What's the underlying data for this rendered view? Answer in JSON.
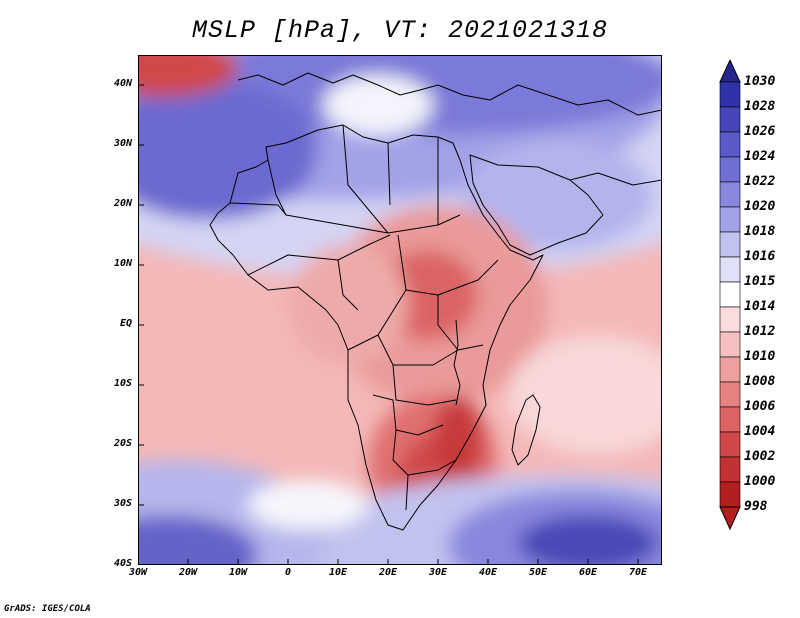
{
  "title": "MSLP [hPa], VT: 2021021318",
  "footer": "GrADS: IGES/COLA",
  "map": {
    "lon_range": [
      -30,
      75
    ],
    "lat_range": [
      -40,
      45
    ],
    "lat_labels": [
      "40N",
      "30N",
      "20N",
      "10N",
      "EQ",
      "10S",
      "20S",
      "30S",
      "40S"
    ],
    "lon_labels": [
      "30W",
      "20W",
      "10W",
      "0",
      "10E",
      "20E",
      "30E",
      "40E",
      "50E",
      "60E",
      "70E"
    ]
  },
  "colorbar": {
    "levels": [
      "1030",
      "1028",
      "1026",
      "1024",
      "1022",
      "1020",
      "1018",
      "1016",
      "1015",
      "1014",
      "1012",
      "1010",
      "1008",
      "1006",
      "1004",
      "1002",
      "1000",
      "998"
    ],
    "colors": [
      "#262691",
      "#3232a8",
      "#4646b9",
      "#5a5ac8",
      "#7070d4",
      "#8888de",
      "#a2a2e8",
      "#c2c2f0",
      "#e0e0f8",
      "#ffffff",
      "#fbdcdc",
      "#f6c0c0",
      "#eea0a0",
      "#e68282",
      "#dc6464",
      "#d04848",
      "#c23232",
      "#b41e1e"
    ]
  }
}
